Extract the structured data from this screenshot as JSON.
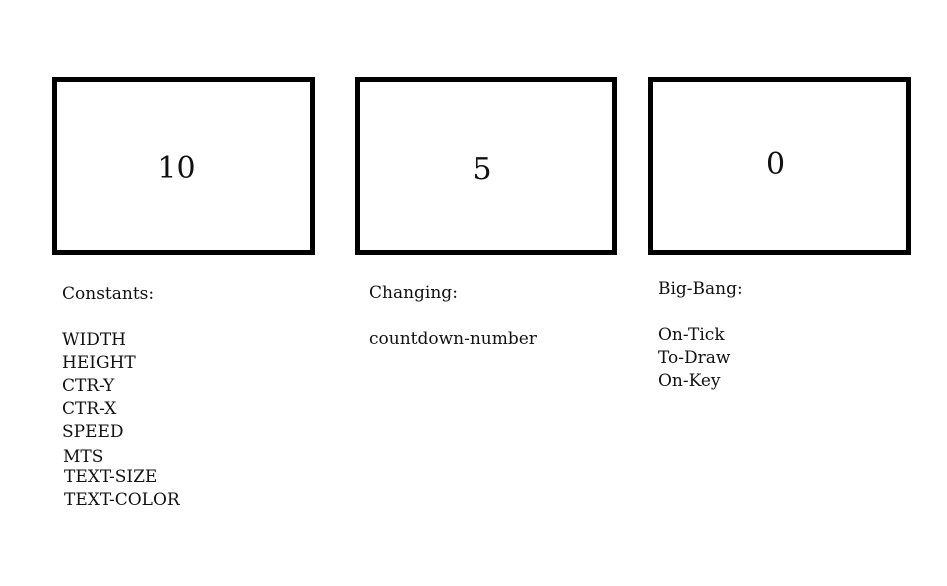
{
  "frames": [
    {
      "number": "10"
    },
    {
      "number": "5"
    },
    {
      "number": "0"
    }
  ],
  "constants": {
    "heading": "Constants:",
    "items": [
      "WIDTH",
      "HEIGHT",
      "CTR-Y",
      "CTR-X",
      "SPEED",
      "MTS",
      "TEXT-SIZE",
      "TEXT-COLOR"
    ]
  },
  "changing": {
    "heading": "Changing:",
    "items": [
      "countdown-number"
    ]
  },
  "big_bang": {
    "heading": "Big-Bang:",
    "items": [
      "On-Tick",
      "To-Draw",
      "On-Key"
    ]
  },
  "colors": {
    "border": "#000000",
    "text": "#111111",
    "background": "#ffffff"
  }
}
